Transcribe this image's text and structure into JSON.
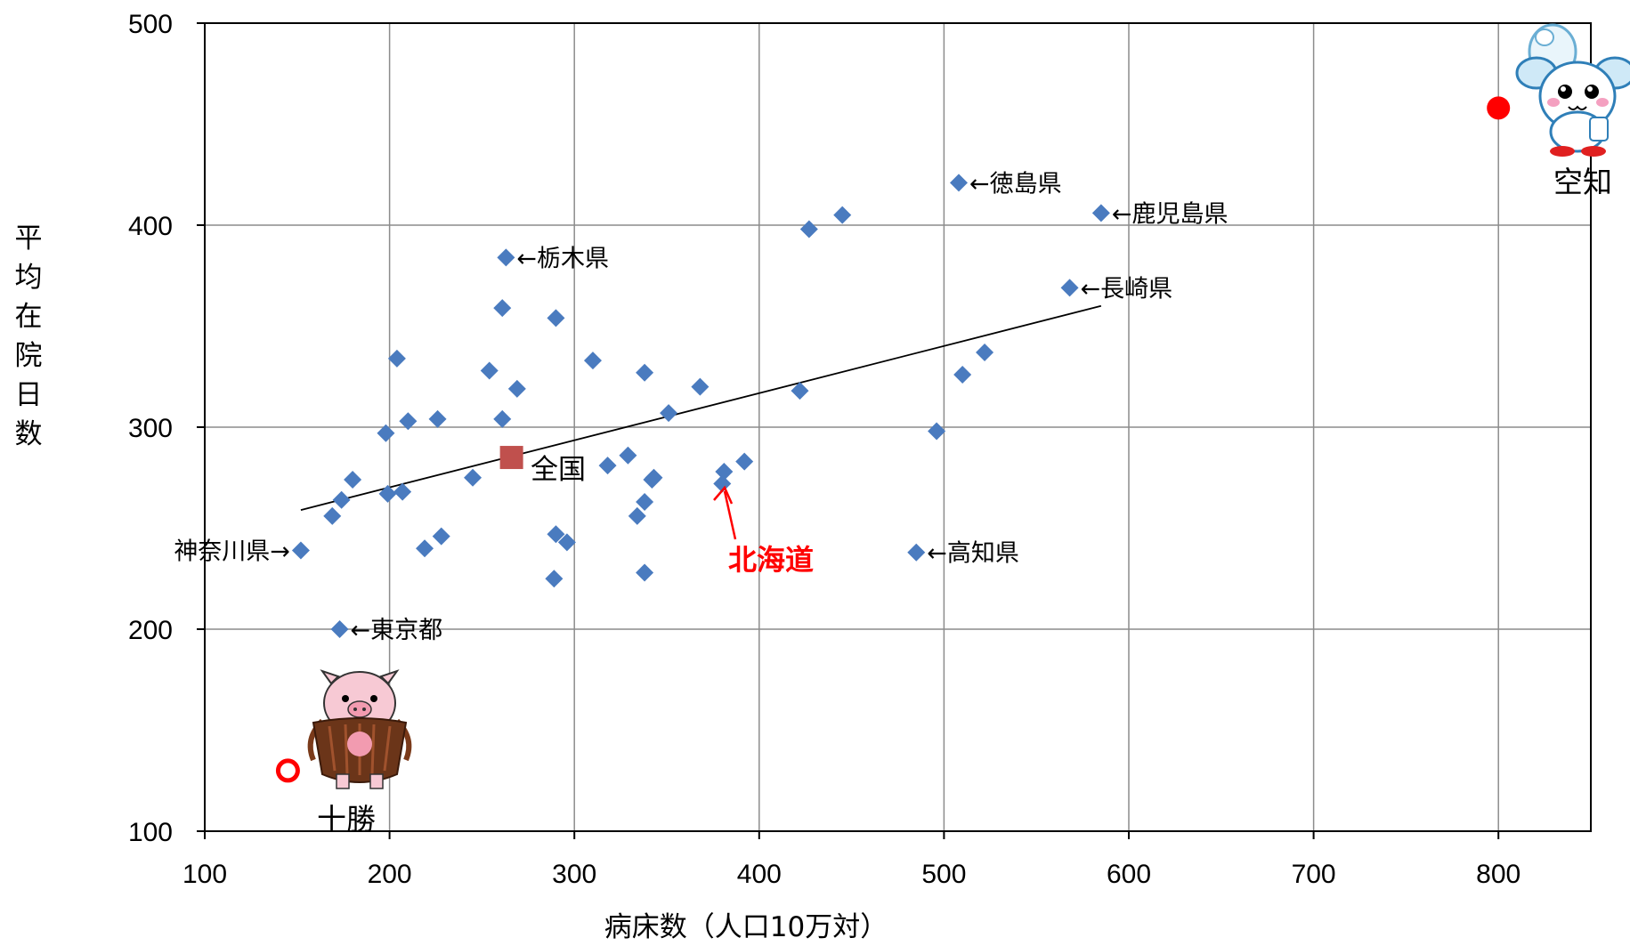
{
  "chart_data": {
    "type": "scatter",
    "title": "",
    "xlabel": "病床数（人口10万対）",
    "ylabel": "平均在院日数",
    "xlim": [
      100,
      850
    ],
    "ylim": [
      100,
      500
    ],
    "xticks": [
      100,
      200,
      300,
      400,
      500,
      600,
      700,
      800
    ],
    "yticks": [
      100,
      200,
      300,
      400,
      500
    ],
    "grid": true,
    "series": [
      {
        "marker": "diamond",
        "color": "#4a7bbf",
        "points": [
          [
            152,
            239
          ],
          [
            169,
            256
          ],
          [
            173,
            200
          ],
          [
            174,
            264
          ],
          [
            180,
            274
          ],
          [
            198,
            297
          ],
          [
            199,
            267
          ],
          [
            204,
            334
          ],
          [
            207,
            268
          ],
          [
            210,
            303
          ],
          [
            219,
            240
          ],
          [
            226,
            304
          ],
          [
            228,
            246
          ],
          [
            245,
            275
          ],
          [
            254,
            328
          ],
          [
            261,
            304
          ],
          [
            261,
            359
          ],
          [
            263,
            384
          ],
          [
            269,
            319
          ],
          [
            289,
            225
          ],
          [
            290,
            354
          ],
          [
            290,
            247
          ],
          [
            296,
            243
          ],
          [
            310,
            333
          ],
          [
            318,
            281
          ],
          [
            329,
            286
          ],
          [
            334,
            256
          ],
          [
            338,
            327
          ],
          [
            338,
            228
          ],
          [
            338,
            263
          ],
          [
            342,
            274
          ],
          [
            343,
            275
          ],
          [
            351,
            307
          ],
          [
            368,
            320
          ],
          [
            381,
            278
          ],
          [
            392,
            283
          ],
          [
            422,
            318
          ],
          [
            427,
            398
          ],
          [
            445,
            405
          ],
          [
            485,
            238
          ],
          [
            496,
            298
          ],
          [
            508,
            421
          ],
          [
            510,
            326
          ],
          [
            522,
            337
          ],
          [
            568,
            369
          ],
          [
            585,
            406
          ]
        ]
      },
      {
        "name": "全国",
        "marker": "square",
        "color": "#c0504d",
        "points": [
          [
            266,
            285
          ]
        ]
      },
      {
        "name": "北海道",
        "marker": "diamond",
        "color": "#4a7bbf",
        "points": [
          [
            380,
            272
          ]
        ]
      },
      {
        "name": "空知",
        "marker": "circle-filled",
        "color": "#ff0000",
        "points": [
          [
            800,
            458
          ]
        ]
      },
      {
        "name": "十勝",
        "marker": "circle-open",
        "color": "#ff0000",
        "points": [
          [
            145,
            130
          ]
        ]
      }
    ],
    "trendline": {
      "from": [
        152,
        259
      ],
      "to": [
        585,
        360
      ],
      "color": "#000000"
    },
    "annotations": [
      {
        "text": "←徳島県",
        "x": 508,
        "y": 421,
        "side": "right"
      },
      {
        "text": "←鹿児島県",
        "x": 585,
        "y": 406,
        "side": "right"
      },
      {
        "text": "←栃木県",
        "x": 263,
        "y": 384,
        "side": "right"
      },
      {
        "text": "←長崎県",
        "x": 568,
        "y": 369,
        "side": "right"
      },
      {
        "text": "←高知県",
        "x": 485,
        "y": 238,
        "side": "right"
      },
      {
        "text": "←東京都",
        "x": 173,
        "y": 200,
        "side": "right"
      },
      {
        "text": "神奈川県→",
        "x": 152,
        "y": 239,
        "side": "left"
      }
    ],
    "callouts": {
      "zenkoku": "全国",
      "hokkaido": "北海道",
      "sorachi": "空知",
      "tokachi": "十勝"
    },
    "colors": {
      "hokkaido_label": "#ff0000",
      "grid": "#8c8c8c"
    }
  }
}
